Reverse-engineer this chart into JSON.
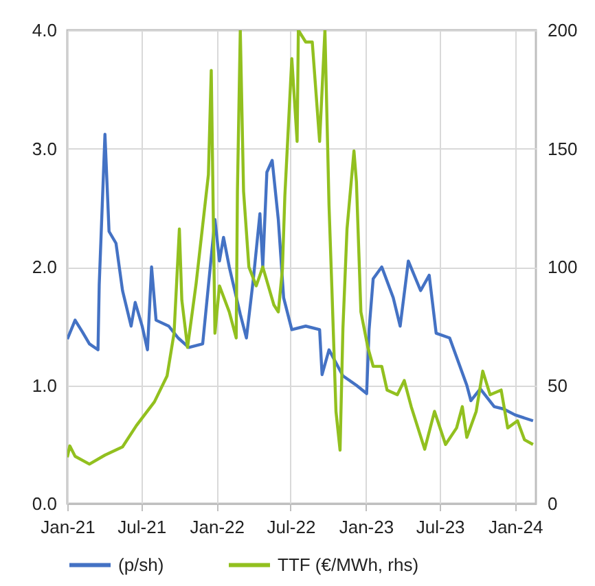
{
  "chart_data": {
    "type": "line",
    "xlim": [
      "2021-01-01",
      "2024-02-21"
    ],
    "xticks": [
      {
        "value": "2021-01-01",
        "label": "Jan-21"
      },
      {
        "value": "2021-07-01",
        "label": "Jul-21"
      },
      {
        "value": "2022-01-01",
        "label": "Jan-22"
      },
      {
        "value": "2022-07-01",
        "label": "Jul-22"
      },
      {
        "value": "2023-01-01",
        "label": "Jan-23"
      },
      {
        "value": "2023-07-01",
        "label": "Jul-23"
      },
      {
        "value": "2024-01-01",
        "label": "Jan-24"
      }
    ],
    "ylim": [
      0,
      4
    ],
    "yticks": [
      {
        "value": 0,
        "label": "0.0"
      },
      {
        "value": 1,
        "label": "1.0"
      },
      {
        "value": 2,
        "label": "2.0"
      },
      {
        "value": 3,
        "label": "3.0"
      },
      {
        "value": 4,
        "label": "4.0"
      }
    ],
    "y2lim": [
      0,
      200
    ],
    "y2ticks": [
      0,
      50,
      100,
      150,
      200
    ],
    "grid": true,
    "legend": "bottom",
    "line_style": "solid",
    "series": [
      {
        "name": "(p/sh)",
        "color": "#4472c4",
        "x": [
          "2021-01-01",
          "2021-01-20",
          "2021-02-07",
          "2021-02-24",
          "2021-03-17",
          "2021-03-20",
          "2021-04-03",
          "2021-04-13",
          "2021-04-30",
          "2021-05-16",
          "2021-06-06",
          "2021-06-16",
          "2021-07-03",
          "2021-07-16",
          "2021-07-26",
          "2021-08-06",
          "2021-09-06",
          "2021-09-29",
          "2021-10-25",
          "2021-11-28",
          "2021-12-28",
          "2022-01-08",
          "2022-01-18",
          "2022-02-01",
          "2022-02-28",
          "2022-03-15",
          "2022-04-01",
          "2022-04-17",
          "2022-04-24",
          "2022-05-04",
          "2022-05-17",
          "2022-06-01",
          "2022-06-14",
          "2022-07-04",
          "2022-08-07",
          "2022-09-10",
          "2022-09-16",
          "2022-10-03",
          "2022-11-06",
          "2022-12-09",
          "2023-01-03",
          "2023-01-09",
          "2023-01-19",
          "2023-02-09",
          "2023-03-09",
          "2023-03-26",
          "2023-04-15",
          "2023-05-15",
          "2023-06-05",
          "2023-06-22",
          "2023-07-25",
          "2023-09-05",
          "2023-09-15",
          "2023-10-08",
          "2023-11-11",
          "2023-12-04",
          "2024-01-01",
          "2024-02-14"
        ],
        "values": [
          1.39,
          1.55,
          1.45,
          1.35,
          1.3,
          1.85,
          3.12,
          2.3,
          2.2,
          1.8,
          1.5,
          1.7,
          1.5,
          1.3,
          2.0,
          1.55,
          1.5,
          1.4,
          1.32,
          1.35,
          2.4,
          2.05,
          2.25,
          2.0,
          1.6,
          1.4,
          1.9,
          2.45,
          2.0,
          2.8,
          2.9,
          2.4,
          1.74,
          1.47,
          1.5,
          1.47,
          1.09,
          1.3,
          1.08,
          1.0,
          0.93,
          1.47,
          1.9,
          2.0,
          1.74,
          1.5,
          2.05,
          1.8,
          1.93,
          1.44,
          1.4,
          1.0,
          0.87,
          0.97,
          0.82,
          0.8,
          0.75,
          0.7
        ]
      },
      {
        "name": "TTF (€/MWh, rhs)",
        "color": "#92c01f",
        "axis": "y2",
        "x": [
          "2021-01-01",
          "2021-01-07",
          "2021-01-20",
          "2021-02-24",
          "2021-04-03",
          "2021-05-16",
          "2021-06-19",
          "2021-08-02",
          "2021-09-02",
          "2021-09-19",
          "2021-10-02",
          "2021-10-08",
          "2021-10-22",
          "2021-11-12",
          "2021-12-12",
          "2021-12-19",
          "2021-12-28",
          "2022-01-08",
          "2022-02-01",
          "2022-02-18",
          "2022-02-21",
          "2022-02-28",
          "2022-03-08",
          "2022-03-21",
          "2022-04-08",
          "2022-04-24",
          "2022-05-21",
          "2022-06-01",
          "2022-06-11",
          "2022-06-17",
          "2022-07-04",
          "2022-07-17",
          "2022-07-20",
          "2022-08-07",
          "2022-08-23",
          "2022-09-10",
          "2022-09-23",
          "2022-10-03",
          "2022-10-10",
          "2022-10-20",
          "2022-10-30",
          "2022-11-06",
          "2022-11-16",
          "2022-12-03",
          "2022-12-09",
          "2022-12-20",
          "2023-01-06",
          "2023-01-19",
          "2023-02-09",
          "2023-02-22",
          "2023-03-19",
          "2023-04-05",
          "2023-04-22",
          "2023-05-25",
          "2023-06-18",
          "2023-07-15",
          "2023-08-11",
          "2023-08-25",
          "2023-09-05",
          "2023-09-28",
          "2023-10-14",
          "2023-11-01",
          "2023-11-28",
          "2023-12-14",
          "2024-01-07",
          "2024-01-24",
          "2024-02-14"
        ],
        "values": [
          19.6,
          24.4,
          20,
          16.7,
          20.5,
          24,
          33,
          43,
          54,
          72,
          116,
          86,
          66,
          93,
          139,
          183,
          72,
          92,
          81,
          70,
          132,
          200,
          132,
          100,
          92,
          100,
          84,
          81,
          99,
          130,
          188,
          153,
          200,
          195,
          195,
          153,
          200,
          126,
          91,
          39,
          22.6,
          74,
          116,
          149,
          136,
          81,
          66,
          58,
          58,
          48,
          46,
          52,
          41,
          23,
          39,
          25,
          32,
          41,
          28,
          39,
          56,
          46,
          48,
          32,
          35,
          27,
          25
        ]
      }
    ]
  }
}
